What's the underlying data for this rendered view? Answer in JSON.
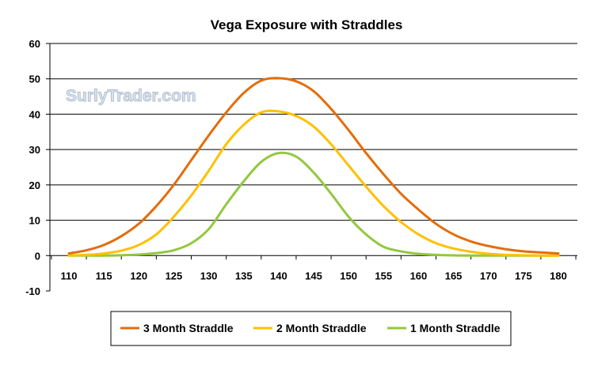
{
  "chart_data": {
    "type": "line",
    "title": "Vega Exposure with Straddles",
    "watermark": "SurlyTrader.com",
    "xlabel": "",
    "ylabel": "",
    "x": [
      110,
      112.5,
      115,
      117.5,
      120,
      122.5,
      125,
      127.5,
      130,
      132.5,
      135,
      137.5,
      140,
      142.5,
      145,
      147.5,
      150,
      152.5,
      155,
      157.5,
      160,
      162.5,
      165,
      167.5,
      170,
      172.5,
      175,
      177.5,
      180
    ],
    "xticks": [
      "110",
      "115",
      "120",
      "125",
      "130",
      "135",
      "140",
      "145",
      "150",
      "155",
      "160",
      "165",
      "170",
      "175",
      "180"
    ],
    "xlim": [
      110,
      180
    ],
    "ylim": [
      -10,
      60
    ],
    "yticks": [
      "-10",
      "0",
      "10",
      "20",
      "30",
      "40",
      "50",
      "60"
    ],
    "grid": true,
    "legend_position": "bottom",
    "series": [
      {
        "name": "3 Month Straddle",
        "color": "#e46c0a",
        "values": [
          0.6,
          1.5,
          3.0,
          5.5,
          9.0,
          14.0,
          20.0,
          27.0,
          34.0,
          40.5,
          46.0,
          49.5,
          50.2,
          49.3,
          46.5,
          41.5,
          35.5,
          29.0,
          23.0,
          17.5,
          13.0,
          9.0,
          6.0,
          4.0,
          2.7,
          1.8,
          1.2,
          0.9,
          0.6
        ]
      },
      {
        "name": "2 Month Straddle",
        "color": "#ffc000",
        "values": [
          0.0,
          0.2,
          0.6,
          1.4,
          3.0,
          6.0,
          11.0,
          17.0,
          24.0,
          31.5,
          37.0,
          40.5,
          40.8,
          39.5,
          36.5,
          31.5,
          25.5,
          19.5,
          14.0,
          9.5,
          6.0,
          3.5,
          2.0,
          1.1,
          0.5,
          0.2,
          0.1,
          0.0,
          0.0
        ]
      },
      {
        "name": "1 Month Straddle",
        "color": "#92c83e",
        "values": [
          0.0,
          0.0,
          0.0,
          0.1,
          0.3,
          0.7,
          1.5,
          3.5,
          7.5,
          14.5,
          21.0,
          26.5,
          29.0,
          28.0,
          23.5,
          17.5,
          11.0,
          6.0,
          2.5,
          1.2,
          0.5,
          0.2,
          0.05,
          0.0,
          0.0,
          0.0,
          0.0,
          0.0,
          0.0
        ]
      }
    ]
  }
}
